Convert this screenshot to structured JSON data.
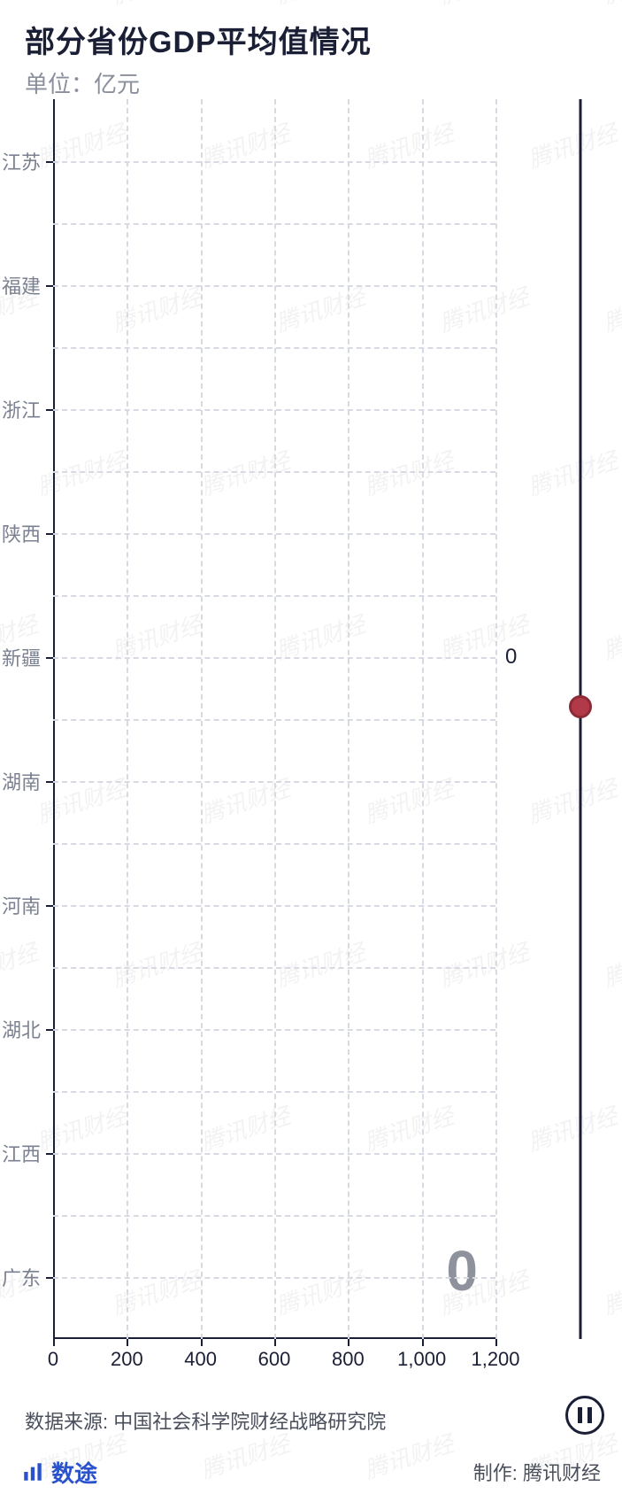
{
  "header": {
    "title": "部分省份GDP平均值情况",
    "subtitle": "单位：亿元"
  },
  "chart": {
    "type": "bar",
    "orientation": "horizontal",
    "categories": [
      "江苏",
      "福建",
      "浙江",
      "陕西",
      "新疆",
      "湖南",
      "河南",
      "湖北",
      "江西",
      "广东"
    ],
    "values": [
      0,
      0,
      0,
      0,
      0,
      0,
      0,
      0,
      0,
      0
    ],
    "value_labels_shown": [
      0
    ],
    "value_label_index": 4,
    "xlim": [
      0,
      1200
    ],
    "xtick_step": 200,
    "xticks": [
      0,
      200,
      400,
      600,
      800,
      1000,
      1200
    ],
    "xtick_labels": [
      "0",
      "200",
      "400",
      "600",
      "800",
      "1,000",
      "1,200"
    ],
    "grid_color": "#d7dae2",
    "axis_color": "#1a1f36",
    "ylabel_color": "#7b8190",
    "ylabel_fontsize": 22,
    "xlabel_fontsize": 22,
    "big_counter": "0",
    "big_counter_color": "#8e929c",
    "big_counter_fontsize": 64,
    "background_color": "#ffffff"
  },
  "timeline": {
    "track_color": "#1a1f36",
    "knob_color": "#b23a48",
    "knob_border": "#8c2b37",
    "position_fraction": 0.49
  },
  "watermark": {
    "text": "腾讯财经",
    "color_rgba": "rgba(0,0,0,0.05)",
    "fontsize": 26,
    "angle_deg": -18
  },
  "source": {
    "label": "数据来源:",
    "text": "中国社会科学院财经战略研究院"
  },
  "controls": {
    "pause_icon": "pause"
  },
  "footer": {
    "brand_label": "数途",
    "brand_color": "#2952cc",
    "made_label": "制作:",
    "made_by": "腾讯财经"
  }
}
